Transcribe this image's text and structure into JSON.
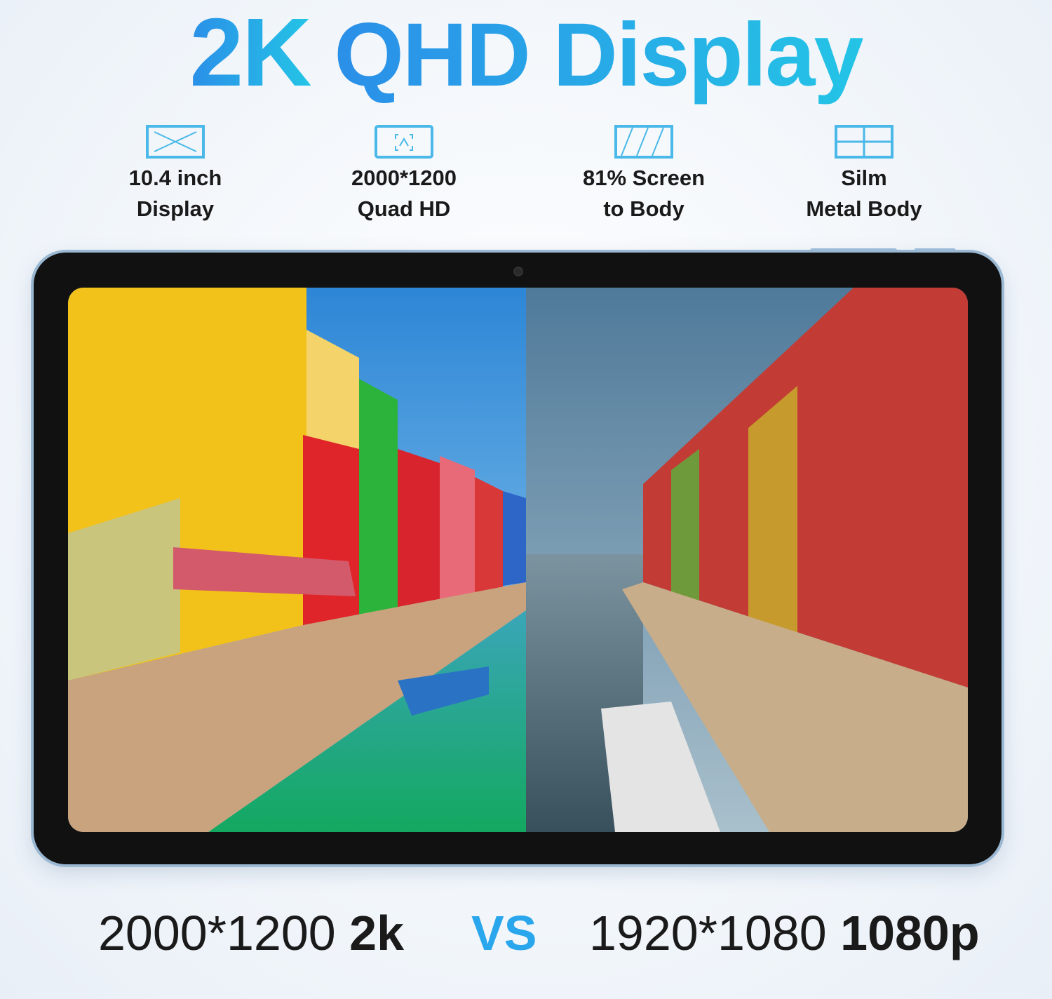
{
  "headline": {
    "part1": "2K",
    "part2": "QHD Display"
  },
  "features": [
    {
      "icon": "expand-diagonal-icon",
      "line1": "10.4 inch",
      "line2": "Display"
    },
    {
      "icon": "fullscreen-image-icon",
      "line1": "2000*1200",
      "line2": "Quad HD"
    },
    {
      "icon": "screen-ratio-icon",
      "line1": "81% Screen",
      "line2": "to Body"
    },
    {
      "icon": "grid-panel-icon",
      "line1": "Silm",
      "line2": "Metal Body"
    }
  ],
  "comparison": {
    "left_res": "2000*1200",
    "left_label": "2k",
    "vs": "VS",
    "right_res": "1920*1080",
    "right_label": "1080p"
  },
  "colors": {
    "accent": "#2aa6ec",
    "icon": "#4ab8e8"
  }
}
